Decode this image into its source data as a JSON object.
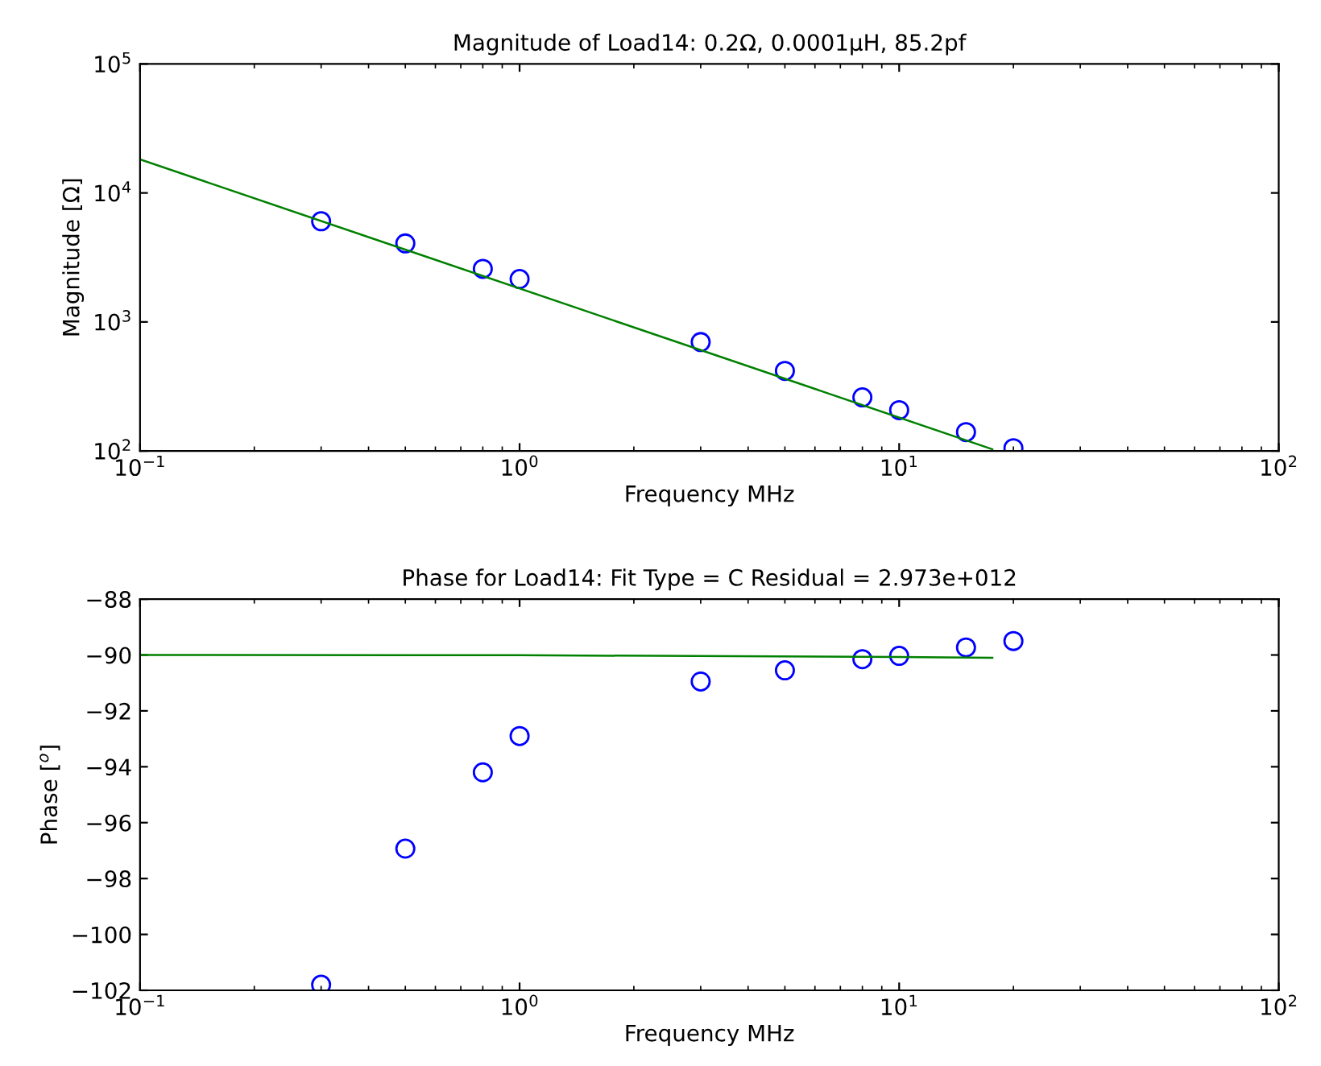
{
  "chart_data": [
    {
      "type": "scatter",
      "title": "Magnitude of Load14: 0.2Ω, 0.0001µH, 85.2pf",
      "xlabel": "Frequency MHz",
      "ylabel": "Magnitude [Ω]",
      "log": "xy",
      "xlim": [
        0.1,
        100
      ],
      "xticks": [
        {
          "value": 0.1,
          "label": "10$^{−1}$"
        },
        {
          "value": 1,
          "label": "10$^{0}$"
        },
        {
          "value": 10,
          "label": "10$^{1}$"
        },
        {
          "value": 100,
          "label": "10$^{2}$"
        }
      ],
      "ylim": [
        100,
        100000
      ],
      "yticks": [
        {
          "value": 100,
          "label": "10$^{2}$"
        },
        {
          "value": 1000,
          "label": "10$^{3}$"
        },
        {
          "value": 10000,
          "label": "10$^{4}$"
        },
        {
          "value": 100000,
          "label": "10$^{5}$"
        }
      ],
      "x": [
        0.3,
        0.5,
        0.8,
        1,
        3,
        5,
        8,
        10,
        15,
        20
      ],
      "grid": false,
      "series": [
        {
          "color": "#0000ff",
          "marker": "circle",
          "values": [
            6030,
            4060,
            2580,
            2150,
            698,
            417,
            260,
            207,
            140,
            105
          ]
        },
        {
          "type": "line",
          "color": "#008000",
          "marker": "none",
          "line_style": "solid",
          "x": [
            0.1,
            17.6
          ],
          "values": [
            18200,
            103
          ]
        }
      ]
    },
    {
      "type": "scatter",
      "title": "Phase for Load14: Fit Type = C Residual = 2.973e+012",
      "xlabel": "Frequency MHz",
      "ylabel": "Phase [$^{o}$]",
      "log": "x",
      "xlim": [
        0.1,
        100
      ],
      "xticks": [
        {
          "value": 0.1,
          "label": "10$^{−1}$"
        },
        {
          "value": 1,
          "label": "10$^{0}$"
        },
        {
          "value": 10,
          "label": "10$^{1}$"
        },
        {
          "value": 100,
          "label": "10$^{2}$"
        }
      ],
      "ylim": [
        -102,
        -88
      ],
      "yticks": [
        -102,
        -100,
        -98,
        -96,
        -94,
        -92,
        -90,
        -88
      ],
      "x": [
        0.3,
        0.5,
        0.8,
        1,
        3,
        5,
        8,
        10,
        15,
        20
      ],
      "grid": false,
      "series": [
        {
          "color": "#0000ff",
          "marker": "circle",
          "values": [
            -101.8,
            -96.93,
            -94.2,
            -92.9,
            -90.95,
            -90.55,
            -90.15,
            -90.03,
            -89.73,
            -89.5
          ]
        },
        {
          "type": "line",
          "color": "#008000",
          "marker": "none",
          "line_style": "solid",
          "x": [
            0.1,
            1,
            10,
            17.6
          ],
          "values": [
            -90,
            -90.01,
            -90.07,
            -90.1
          ]
        }
      ]
    }
  ]
}
